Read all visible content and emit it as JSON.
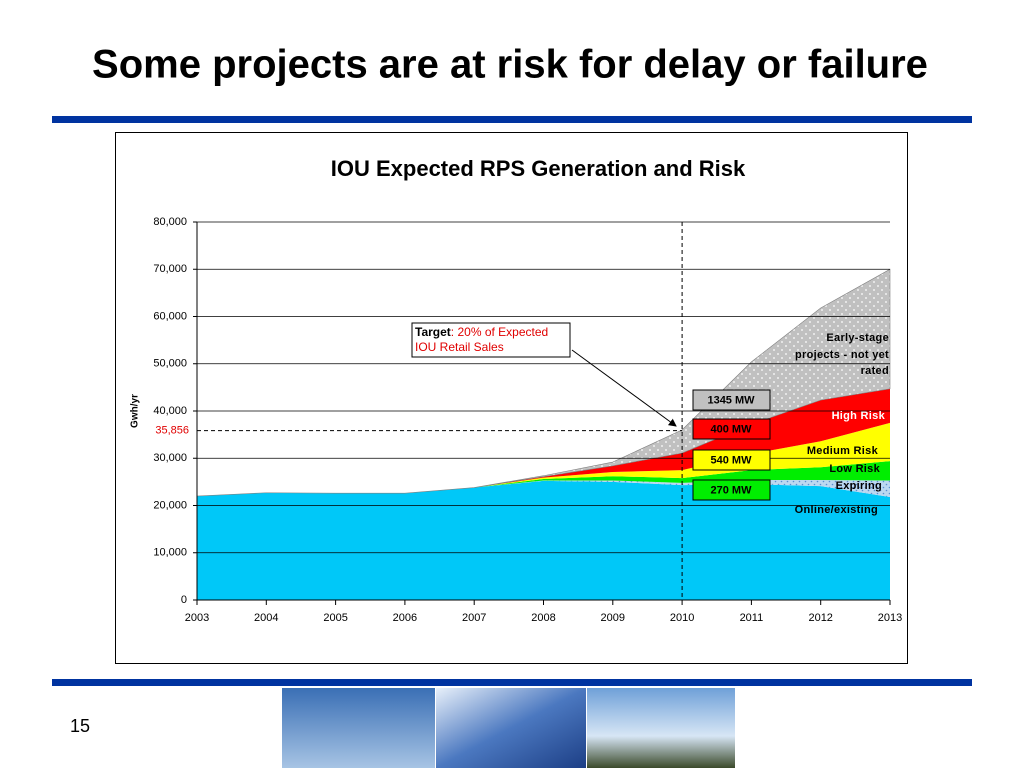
{
  "slide_title": "Some projects are at risk for delay or failure",
  "page_number": "15",
  "chart_data": {
    "type": "stacked_area",
    "title": "IOU Expected RPS Generation and Risk",
    "y_label": "Gwh/yr",
    "x": [
      2003,
      2004,
      2005,
      2006,
      2007,
      2008,
      2009,
      2010,
      2011,
      2012,
      2013
    ],
    "xlim": [
      2003,
      2013
    ],
    "xticks": [
      2003,
      2004,
      2005,
      2006,
      2007,
      2008,
      2009,
      2010,
      2011,
      2012,
      2013
    ],
    "ylim": [
      0,
      80000
    ],
    "yticks": [
      {
        "value": 0,
        "label": "0"
      },
      {
        "value": 10000,
        "label": "10,000"
      },
      {
        "value": 20000,
        "label": "20,000"
      },
      {
        "value": 30000,
        "label": "30,000"
      },
      {
        "value": 40000,
        "label": "40,000"
      },
      {
        "value": 50000,
        "label": "50,000"
      },
      {
        "value": 60000,
        "label": "60,000"
      },
      {
        "value": 70000,
        "label": "70,000"
      },
      {
        "value": 80000,
        "label": "80,000"
      }
    ],
    "grid": true,
    "series": [
      {
        "name": "Online/existing",
        "color": "#00c8f8",
        "values": [
          22000,
          22700,
          22600,
          22600,
          23800,
          25200,
          25000,
          24300,
          24500,
          24100,
          21800
        ]
      },
      {
        "name": "Expiring",
        "color": "#bcd8f0",
        "values": [
          0,
          0,
          0,
          0,
          0,
          100,
          300,
          500,
          900,
          1300,
          3500
        ]
      },
      {
        "name": "Low Risk",
        "color": "#00ee00",
        "values": [
          0,
          0,
          0,
          0,
          0,
          300,
          900,
          1000,
          2100,
          2700,
          4100
        ]
      },
      {
        "name": "Medium Risk",
        "color": "#ffff00",
        "values": [
          0,
          0,
          0,
          0,
          0,
          300,
          900,
          1700,
          3400,
          5500,
          8100
        ]
      },
      {
        "name": "High Risk",
        "color": "#ff0000",
        "values": [
          0,
          0,
          0,
          0,
          0,
          200,
          1300,
          3600,
          6300,
          8700,
          7200
        ]
      },
      {
        "name": "Early-stage projects - not yet rated",
        "color": "#c0c0c0",
        "values": [
          0,
          0,
          0,
          0,
          0,
          200,
          800,
          4900,
          13200,
          19500,
          25300
        ]
      }
    ],
    "reference_line": {
      "value": 35856,
      "label": "35,856",
      "x": 2010
    },
    "target_annotation": {
      "bold": "Target",
      "text": ": 20% of Expected IOU Retail Sales"
    },
    "capacity_labels": [
      {
        "label": "1345 MW",
        "color": "#c0c0c0"
      },
      {
        "label": "400 MW",
        "color": "#ff0000"
      },
      {
        "label": "540 MW",
        "color": "#ffff00"
      },
      {
        "label": "270 MW",
        "color": "#00ee00"
      }
    ]
  }
}
